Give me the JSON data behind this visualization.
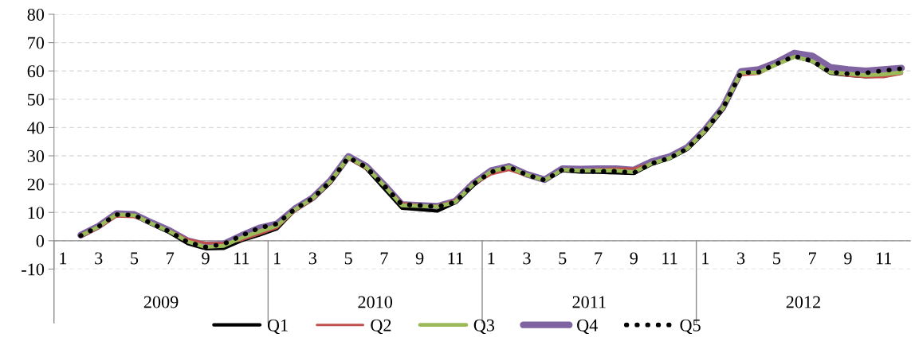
{
  "chart_data": {
    "type": "line",
    "categories": [
      "1",
      null,
      "3",
      null,
      "5",
      null,
      "7",
      null,
      "9",
      null,
      "11",
      null,
      "1",
      null,
      "3",
      null,
      "5",
      null,
      "7",
      null,
      "9",
      null,
      "11",
      null,
      "1",
      null,
      "3",
      null,
      "5",
      null,
      "7",
      null,
      "9",
      null,
      "11",
      null,
      "1",
      null,
      "3",
      null,
      "5",
      null,
      "7",
      null,
      "9",
      null,
      "11",
      null
    ],
    "series": [
      {
        "name": "Q1",
        "color": "#000000",
        "values": [
          null,
          1.8,
          5.0,
          9.3,
          9.0,
          5.8,
          2.8,
          -1.0,
          -2.8,
          -2.7,
          0.0,
          2.0,
          4.2,
          10.8,
          14.8,
          20.5,
          29.3,
          25.5,
          18.5,
          11.5,
          11.0,
          10.5,
          13.5,
          19.5,
          24.3,
          25.8,
          23.2,
          21.3,
          24.8,
          24.3,
          24.2,
          24.0,
          23.8,
          27.0,
          29.0,
          32.3,
          38.5,
          46.5,
          59.0,
          59.4,
          62.3,
          65.0,
          63.3,
          59.2,
          58.5,
          58.0,
          58.2,
          59.3
        ]
      },
      {
        "name": "Q2",
        "color": "#c0504d",
        "values": [
          null,
          1.4,
          4.5,
          8.6,
          8.4,
          6.2,
          3.5,
          0.5,
          -0.8,
          -0.8,
          0.2,
          2.3,
          4.6,
          10.5,
          14.5,
          20.5,
          29.0,
          25.5,
          19.5,
          13.3,
          12.5,
          12.3,
          14.3,
          19.8,
          23.5,
          25.0,
          23.0,
          21.3,
          25.3,
          25.0,
          25.2,
          25.5,
          25.5,
          27.3,
          29.2,
          32.5,
          38.5,
          46.5,
          58.5,
          59.0,
          62.3,
          65.0,
          63.3,
          59.5,
          58.3,
          57.8,
          57.8,
          59.0
        ]
      },
      {
        "name": "Q3",
        "color": "#9bbb59",
        "values": [
          null,
          1.8,
          5.0,
          9.3,
          9.0,
          6.0,
          3.2,
          -0.3,
          -2.2,
          -1.8,
          1.0,
          3.3,
          5.3,
          11.0,
          15.0,
          21.0,
          29.5,
          26.0,
          19.5,
          12.5,
          12.3,
          12.0,
          13.7,
          20.0,
          24.5,
          26.0,
          23.3,
          21.4,
          25.1,
          24.8,
          24.8,
          24.8,
          24.2,
          27.3,
          29.2,
          32.6,
          39.0,
          46.9,
          59.4,
          59.4,
          62.3,
          65.0,
          63.5,
          59.5,
          59.0,
          58.5,
          58.8,
          59.5
        ]
      },
      {
        "name": "Q4",
        "color": "#8064a2",
        "values": [
          null,
          2.0,
          5.2,
          9.6,
          9.3,
          6.3,
          3.5,
          0.0,
          -1.5,
          -1.2,
          1.8,
          4.5,
          6.0,
          11.3,
          15.2,
          21.3,
          29.8,
          26.3,
          19.8,
          12.8,
          12.5,
          12.2,
          14.0,
          20.3,
          24.8,
          26.3,
          23.5,
          21.6,
          25.5,
          25.3,
          25.5,
          25.5,
          25.0,
          28.0,
          29.7,
          33.0,
          39.3,
          47.2,
          59.8,
          60.5,
          63.0,
          66.3,
          65.3,
          61.3,
          60.5,
          60.0,
          60.5,
          61.0
        ]
      },
      {
        "name": "Q5",
        "color": "#000000",
        "line_style": "dotted",
        "values": [
          null,
          1.8,
          5.0,
          9.3,
          9.0,
          6.0,
          3.2,
          -0.5,
          -2.2,
          -1.2,
          1.8,
          4.5,
          6.0,
          11.2,
          15.0,
          21.0,
          29.5,
          26.0,
          19.5,
          12.8,
          12.5,
          12.0,
          13.7,
          20.0,
          24.3,
          26.0,
          23.3,
          21.4,
          25.1,
          24.6,
          24.5,
          24.6,
          24.0,
          27.3,
          29.2,
          32.6,
          39.0,
          46.9,
          59.4,
          59.6,
          62.5,
          65.2,
          63.5,
          59.6,
          59.0,
          59.3,
          60.1,
          60.8
        ]
      }
    ],
    "ylim": [
      -10,
      80
    ],
    "yticks": [
      -10,
      0,
      10,
      20,
      30,
      40,
      50,
      60,
      70,
      80
    ],
    "grid": "y",
    "legend": "bottom",
    "line_style": "solid",
    "marker": "none",
    "annotations": [
      "2009",
      "2010",
      "2011",
      "2012"
    ]
  }
}
